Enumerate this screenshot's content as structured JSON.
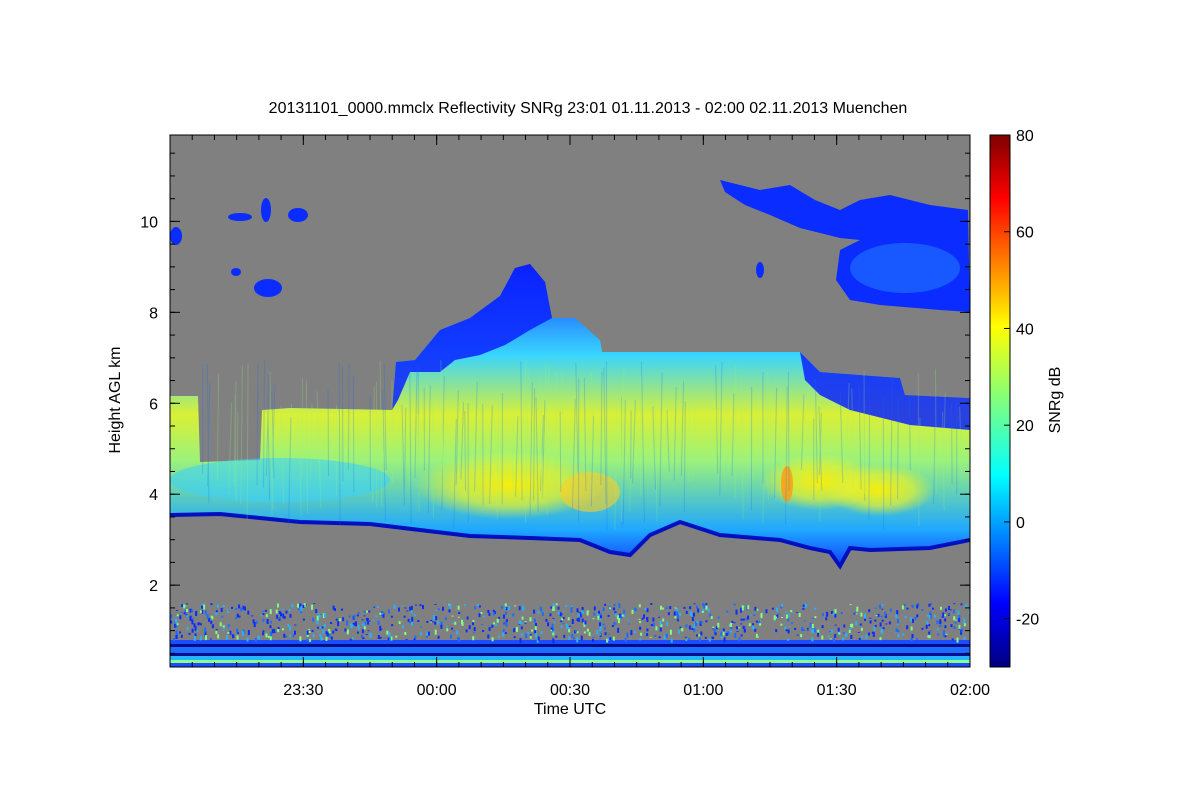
{
  "chart_data": {
    "type": "heatmap",
    "title": "20131101_0000.mmclx Reflectivity SNRg   23:01 01.11.2013 - 02:00 02.11.2013 Muenchen",
    "xlabel": "Time UTC",
    "ylabel": "Height AGL km",
    "x_tick_labels": [
      "23:30",
      "00:00",
      "00:30",
      "01:00",
      "01:30",
      "02:00"
    ],
    "x_ticks_hours": [
      23.5,
      24.0,
      24.5,
      25.0,
      25.5,
      26.0
    ],
    "xlim_hours": [
      23.0,
      26.0
    ],
    "y_tick_labels": [
      "2",
      "4",
      "6",
      "8",
      "10"
    ],
    "y_ticks": [
      2,
      4,
      6,
      8,
      10
    ],
    "ylim": [
      0.2,
      11.9
    ],
    "background_color": "#808080",
    "colorbar": {
      "label": "SNRg dB",
      "range": [
        -30,
        80
      ],
      "tick_labels": [
        "-20",
        "0",
        "20",
        "40",
        "60",
        "80"
      ],
      "ticks": [
        -20,
        0,
        20,
        40,
        60,
        80
      ],
      "colormap": "jet"
    },
    "features": [
      {
        "name": "main cloud layer",
        "time_start": 23.0,
        "time_end": 26.0,
        "height_base_km": [
          3.5,
          3.8
        ],
        "height_top_km": [
          5.0,
          9.0
        ],
        "peak_snr_db": 40
      },
      {
        "name": "cirrus patch",
        "time_start": 25.4,
        "time_end": 26.0,
        "height_base_km": 8.0,
        "height_top_km": 10.9,
        "peak_snr_db": -5
      },
      {
        "name": "near-surface clutter",
        "height_range_km": [
          0.2,
          1.6
        ],
        "peak_snr_db": 10
      }
    ]
  }
}
